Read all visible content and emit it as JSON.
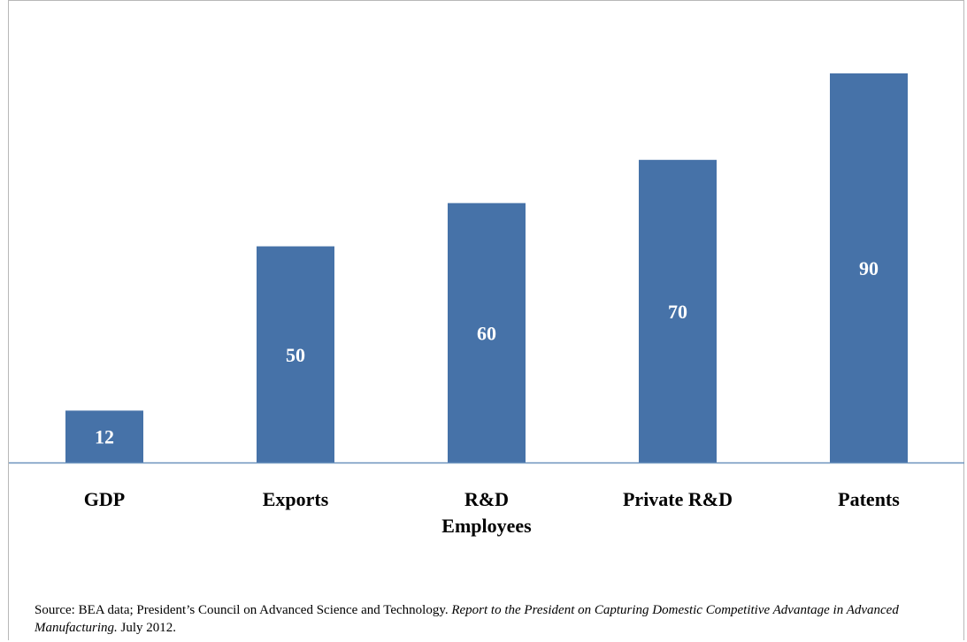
{
  "chart_data": {
    "type": "bar",
    "categories": [
      [
        "GDP"
      ],
      [
        "Exports"
      ],
      [
        "R&D",
        "Employees"
      ],
      [
        "Private R&D"
      ],
      [
        "Patents"
      ]
    ],
    "values": [
      12,
      50,
      60,
      70,
      90
    ],
    "data_labels": [
      "12",
      "50",
      "60",
      "70",
      "90"
    ],
    "title": "",
    "xlabel": "",
    "ylabel": "",
    "ylim": [
      0,
      100
    ],
    "grid": false,
    "legend": "none",
    "colors": {
      "bar": "#4672a8",
      "axis": "#6d93be",
      "bar_label": "#ffffff"
    }
  },
  "source": {
    "prefix": "Source:   BEA data; President’s Council on Advanced Science and Technology. ",
    "italic": "Report to the President on Capturing Domestic Competitive Advantage in Advanced Manufacturing.",
    "suffix": " July 2012."
  }
}
